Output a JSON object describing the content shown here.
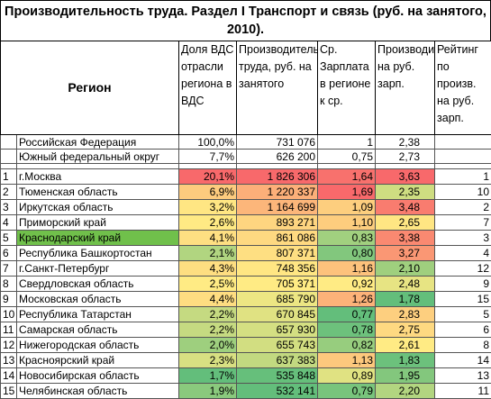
{
  "title": "Производительность труда. Раздел I Транспорт и связь (руб. на занятого, 2010).",
  "table": {
    "header": [
      "Регион",
      "Доля ВДС отрасли региона в ВДС",
      "Производительность труда, руб. на занятого",
      "Ср. Зарплата в регионе к ср.",
      "Производительность на руб. зарп.",
      "Рейтинг по произв. на руб. зарп."
    ],
    "summary_rows": [
      [
        "Российская Федерация",
        "100,0%",
        "731 076",
        "1",
        "2,38"
      ],
      [
        "Южный федеральный  округ",
        "7,7%",
        "626 200",
        "0,75",
        "2,73"
      ]
    ],
    "rows": [
      [
        "1",
        "г.Москва",
        "20,1%",
        "1 826 306",
        "1,64",
        "3,63",
        "1"
      ],
      [
        "2",
        "Тюменская область",
        "6,9%",
        "1 220 337",
        "1,69",
        "2,35",
        "10"
      ],
      [
        "3",
        "Иркутская область",
        "3,2%",
        "1 164 699",
        "1,09",
        "3,48",
        "2"
      ],
      [
        "4",
        "Приморский край",
        "2,6%",
        "893 271",
        "1,10",
        "2,65",
        "7"
      ],
      [
        "5",
        "Краснодарский край",
        "4,1%",
        "861 086",
        "0,83",
        "3,38",
        "3"
      ],
      [
        "6",
        "Республика Башкортостан",
        "2,1%",
        "807 371",
        "0,80",
        "3,27",
        "4"
      ],
      [
        "7",
        "г.Санкт-Петербург",
        "4,3%",
        "748 356",
        "1,16",
        "2,10",
        "12"
      ],
      [
        "8",
        "Свердловская область",
        "2,5%",
        "705 371",
        "0,92",
        "2,48",
        "9"
      ],
      [
        "9",
        "Московская область",
        "4,4%",
        "685 790",
        "1,26",
        "1,78",
        "15"
      ],
      [
        "10",
        "Республика Татарстан",
        "2,2%",
        "670 845",
        "0,77",
        "2,83",
        "5"
      ],
      [
        "11",
        "Самарская область",
        "2,2%",
        "657 930",
        "0,78",
        "2,75",
        "6"
      ],
      [
        "12",
        "Нижегородская область",
        "2,0%",
        "655 743",
        "0,82",
        "2,61",
        "8"
      ],
      [
        "13",
        "Красноярский край",
        "2,3%",
        "637 383",
        "1,13",
        "1,83",
        "14"
      ],
      [
        "14",
        "Новосибирская область",
        "1,7%",
        "535 848",
        "0,89",
        "1,95",
        "13"
      ],
      [
        "15",
        "Челябинская область",
        "1,9%",
        "532 141",
        "0,79",
        "2,20",
        "11"
      ]
    ]
  }
}
